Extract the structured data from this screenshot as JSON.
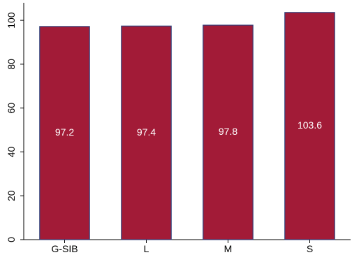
{
  "chart_data": {
    "type": "bar",
    "title": "",
    "xlabel": "",
    "ylabel": "",
    "categories": [
      "G-SIB",
      "L",
      "M",
      "S"
    ],
    "values": [
      97.2,
      97.4,
      97.8,
      103.6
    ],
    "data_labels": [
      "97.2",
      "97.4",
      "97.8",
      "103.6"
    ],
    "ylim": [
      0,
      108
    ],
    "yticks": [
      0,
      20,
      40,
      60,
      80,
      100
    ],
    "grid": false,
    "legend": "none",
    "bar_color": "#a21b37",
    "bar_edge_color": "#2f3f7a",
    "label_color": "#ffffff"
  }
}
